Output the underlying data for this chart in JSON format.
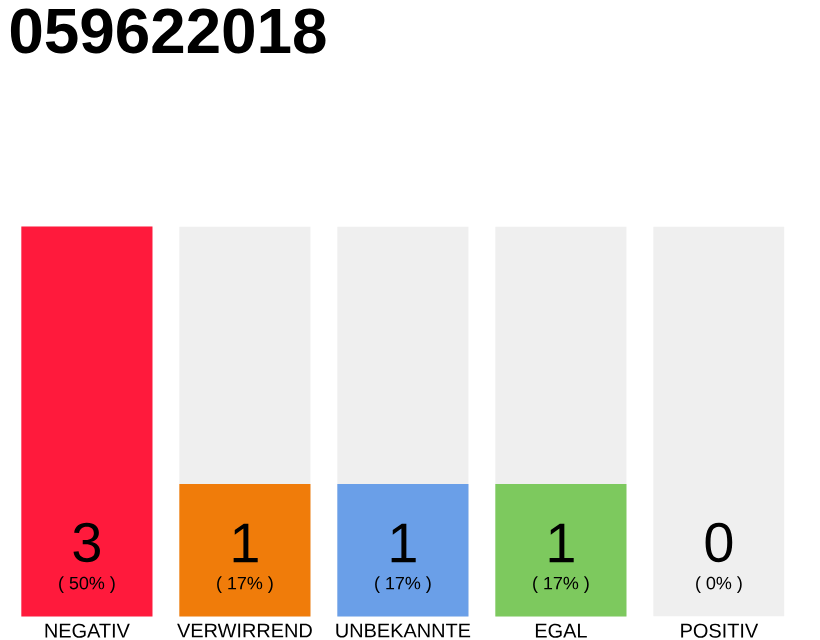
{
  "chart_data": {
    "type": "bar",
    "title": "059622018",
    "categories": [
      "NEGATIV",
      "VERWIRREND",
      "UNBEKANNTE",
      "EGAL",
      "POSITIV"
    ],
    "series": [
      {
        "colors": [
          "#ff1a3c",
          "#f07c0a",
          "#6a9fe8",
          "#7dc95e",
          "#cccccc"
        ],
        "values": [
          50,
          17,
          17,
          17,
          0
        ],
        "value_labels": [
          "( 50% )",
          "( 17% )",
          "( 17% )",
          "( 17% )",
          "( 0% )"
        ]
      }
    ],
    "bands": [
      {
        "axis": "y",
        "from": 0,
        "to": 50,
        "color": "#efefef"
      }
    ],
    "annotations": [
      "3",
      "1",
      "1",
      "1",
      "0"
    ]
  }
}
